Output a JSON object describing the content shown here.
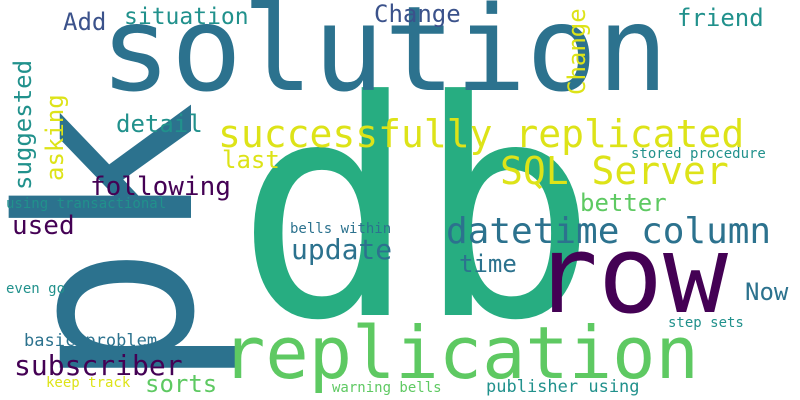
{
  "words": {
    "solution": {
      "text": "solution",
      "color": "#2c728e"
    },
    "db": {
      "text": "db",
      "color": "#27ad81"
    },
    "pk": {
      "text": "pk",
      "color": "#2c728e"
    },
    "row": {
      "text": "row",
      "color": "#440154"
    },
    "replication": {
      "text": "replication",
      "color": "#5ec962"
    },
    "successfully_replicated": {
      "text": "successfully replicated",
      "color": "#dde318"
    },
    "sql_server": {
      "text": "SQL Server",
      "color": "#dde318"
    },
    "datetime_column": {
      "text": "datetime column",
      "color": "#2c728e"
    },
    "situation": {
      "text": "situation",
      "color": "#21918c"
    },
    "add": {
      "text": "Add",
      "color": "#3b528b"
    },
    "change_top": {
      "text": "Change",
      "color": "#3b528b"
    },
    "friend": {
      "text": "friend",
      "color": "#21918c"
    },
    "suggested": {
      "text": "suggested",
      "color": "#21918c"
    },
    "asking": {
      "text": "asking",
      "color": "#dde318"
    },
    "detail": {
      "text": "detail",
      "color": "#21918c"
    },
    "last": {
      "text": "last",
      "color": "#dde318"
    },
    "following": {
      "text": "following",
      "color": "#440154"
    },
    "using_transactional": {
      "text": "using transactional",
      "color": "#21918c"
    },
    "used": {
      "text": "used",
      "color": "#440154"
    },
    "update": {
      "text": "update",
      "color": "#2c728e"
    },
    "bells_within": {
      "text": "bells within",
      "color": "#2c728e"
    },
    "better": {
      "text": "better",
      "color": "#5ec962"
    },
    "time": {
      "text": "time",
      "color": "#2c728e"
    },
    "stored_procedure": {
      "text": "stored procedure",
      "color": "#21918c"
    },
    "change_right": {
      "text": "Change",
      "color": "#dde318"
    },
    "now": {
      "text": "Now",
      "color": "#2c728e"
    },
    "even_go": {
      "text": "even go",
      "color": "#21918c"
    },
    "basic_problem": {
      "text": "basic problem",
      "color": "#2c728e"
    },
    "subscriber": {
      "text": "subscriber",
      "color": "#440154"
    },
    "sorts": {
      "text": "sorts",
      "color": "#5ec962"
    },
    "keep_track": {
      "text": "keep track",
      "color": "#dde318"
    },
    "warning_bells": {
      "text": "warning bells",
      "color": "#5ec962"
    },
    "publisher_using": {
      "text": "publisher using",
      "color": "#21918c"
    },
    "step_sets": {
      "text": "step sets",
      "color": "#21918c"
    }
  }
}
